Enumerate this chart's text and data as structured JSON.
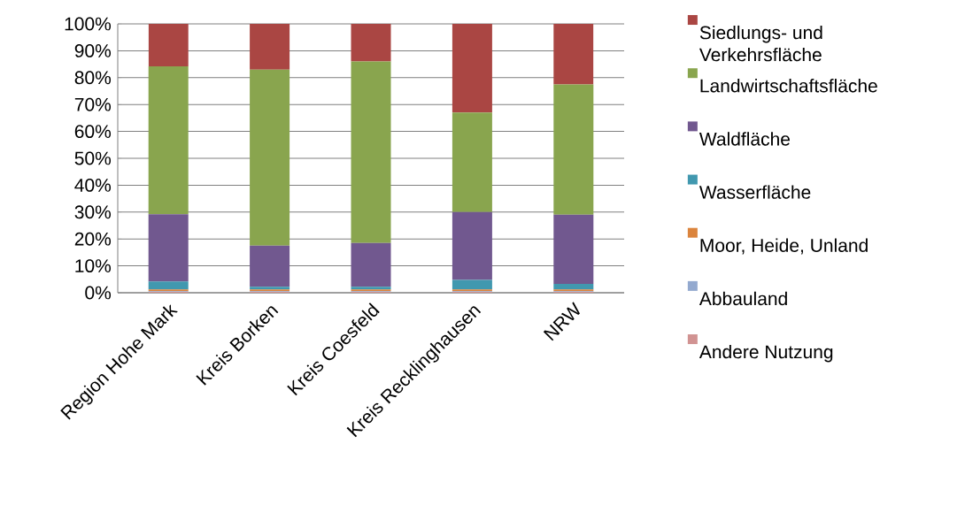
{
  "chart_data": {
    "type": "bar",
    "stacked": true,
    "categories": [
      "Region Hohe Mark",
      "Kreis Borken",
      "Kreis Coesfeld",
      "Kreis Recklinghausen",
      "NRW"
    ],
    "series": [
      {
        "name": "Andere Nutzung",
        "color": "#d19392",
        "values": [
          0.3,
          0.3,
          0.3,
          0.3,
          0.3
        ]
      },
      {
        "name": "Abbauland",
        "color": "#93a9cf",
        "values": [
          0.3,
          0.3,
          0.3,
          0.3,
          0.3
        ]
      },
      {
        "name": "Moor, Heide, Unland",
        "color": "#db843d",
        "values": [
          0.6,
          0.6,
          0.6,
          0.6,
          0.6
        ]
      },
      {
        "name": "Wasserfläche",
        "color": "#4198af",
        "values": [
          3.0,
          1.0,
          1.0,
          3.6,
          2.1
        ]
      },
      {
        "name": "Waldfläche",
        "color": "#71588f",
        "values": [
          25.0,
          15.3,
          16.3,
          25.2,
          25.7
        ]
      },
      {
        "name": "Landwirtschaftsfläche",
        "color": "#89a54e",
        "values": [
          55.0,
          65.5,
          67.5,
          37.0,
          48.5
        ]
      },
      {
        "name": "Siedlungs- und Verkehrsfläche",
        "color": "#aa4643",
        "values": [
          15.8,
          17.0,
          14.0,
          33.0,
          22.5
        ]
      }
    ],
    "ylim": [
      0,
      100
    ],
    "yticks": [
      {
        "value": 0,
        "label": "0%"
      },
      {
        "value": 10,
        "label": "10%"
      },
      {
        "value": 20,
        "label": "20%"
      },
      {
        "value": 30,
        "label": "30%"
      },
      {
        "value": 40,
        "label": "40%"
      },
      {
        "value": 50,
        "label": "50%"
      },
      {
        "value": 60,
        "label": "60%"
      },
      {
        "value": 70,
        "label": "70%"
      },
      {
        "value": 80,
        "label": "80%"
      },
      {
        "value": 90,
        "label": "90%"
      },
      {
        "value": 100,
        "label": "100%"
      }
    ],
    "grid": "y",
    "legend": "right"
  }
}
